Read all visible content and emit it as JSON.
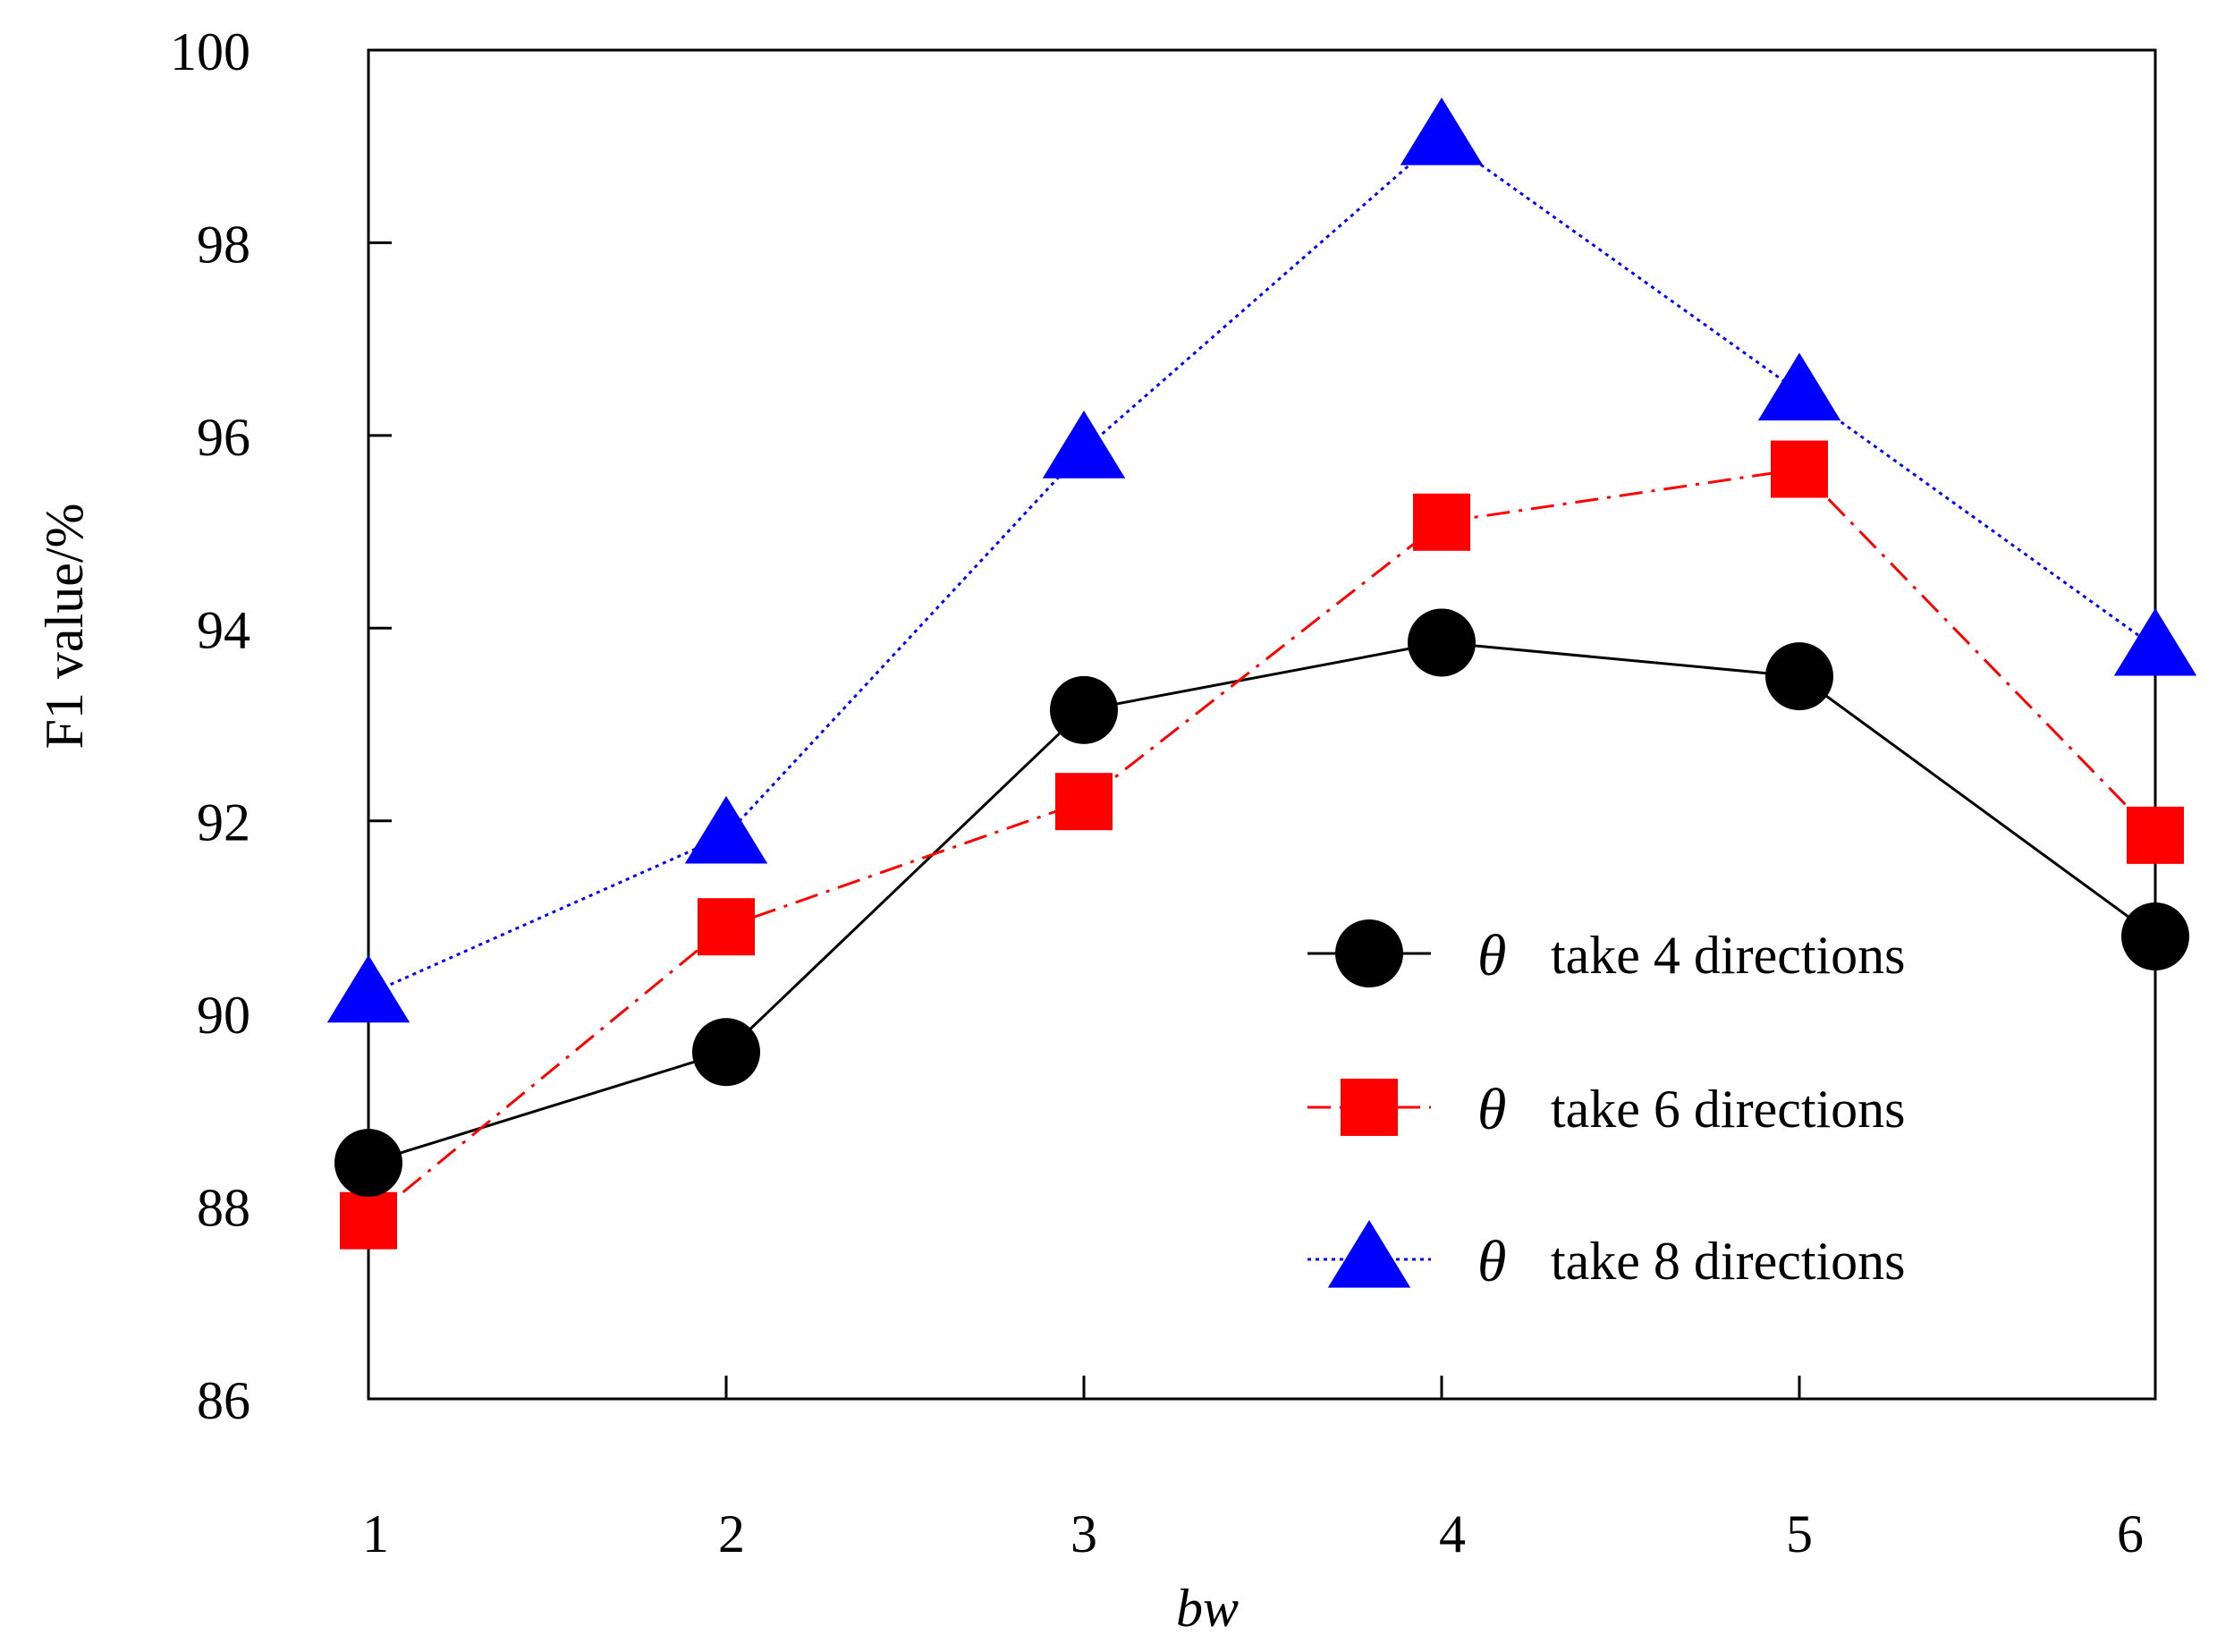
{
  "chart_data": {
    "type": "line",
    "title": "",
    "xlabel": "bw",
    "ylabel": "F1 value/%",
    "x": [
      1,
      2,
      3,
      4,
      5,
      6
    ],
    "xlim": [
      1,
      6
    ],
    "ylim": [
      86,
      100
    ],
    "yticks": [
      86,
      88,
      90,
      92,
      94,
      96,
      98,
      100
    ],
    "grid": false,
    "legend_position": "lower-right",
    "series": [
      {
        "name": "take 4 directions",
        "symbol": "θ",
        "marker": "circle",
        "line_style": "solid",
        "color": "#000000",
        "values": [
          88.45,
          89.6,
          93.15,
          93.85,
          93.5,
          90.8
        ]
      },
      {
        "name": "take 6 directions",
        "symbol": "θ",
        "marker": "square",
        "line_style": "dash-dot",
        "color": "#ff0000",
        "values": [
          87.85,
          90.9,
          92.2,
          95.1,
          95.65,
          91.85
        ]
      },
      {
        "name": "take 8 directions",
        "symbol": "θ",
        "marker": "triangle",
        "line_style": "dotted",
        "color": "#0000ff",
        "values": [
          90.2,
          91.85,
          95.85,
          99.1,
          96.45,
          93.8
        ]
      }
    ]
  }
}
